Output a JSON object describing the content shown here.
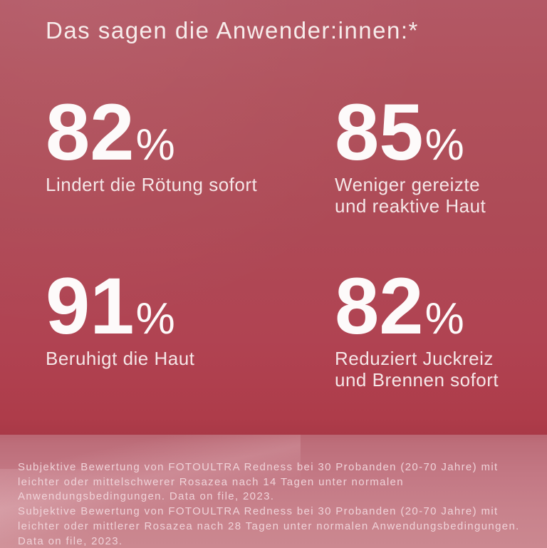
{
  "page": {
    "title": "Das sagen die Anwender:innen:*"
  },
  "stats": [
    {
      "value": "82",
      "suffix": "%",
      "label": "Lindert die Rötung sofort"
    },
    {
      "value": "85",
      "suffix": "%",
      "label": "Weniger gereizte und reaktive Haut"
    },
    {
      "value": "91",
      "suffix": "%",
      "label": "Beruhigt die Haut"
    },
    {
      "value": "82",
      "suffix": "%",
      "label": "Reduziert Juckreiz und Brennen sofort"
    }
  ],
  "footnotes": [
    {
      "lines": [
        "Subjektive Bewertung von FOTOULTRA Redness bei 30 Probanden (20-70 Jahre) mit",
        "leichter oder mittelschwerer Rosazea nach 14 Tagen unter normalen",
        "Anwendungsbedingungen. Data on file, 2023."
      ]
    },
    {
      "lines": [
        "Subjektive Bewertung von FOTOULTRA Redness bei 30 Probanden (20-70 Jahre) mit",
        "leichter oder mittlerer Rosazea nach 28 Tagen unter normalen Anwendungsbedingungen.",
        "Data on file, 2023."
      ]
    }
  ],
  "colors": {
    "background_wall_top": "#b35865",
    "background_wall_bottom": "#a93947",
    "floor_top": "#b96672",
    "floor_bottom": "#cb8890",
    "text_primary": "#fdfafa",
    "text_title": "#f7eceb",
    "text_label": "#f5e6e7",
    "text_footnote": "#f0d3d9"
  }
}
